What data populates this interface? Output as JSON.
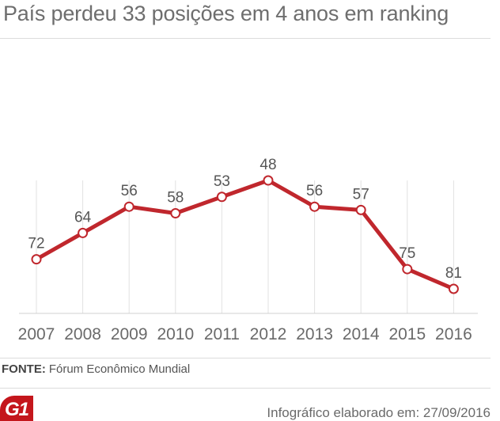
{
  "title": "País perdeu 33 posições em 4 anos em ranking",
  "source": {
    "label": "FONTE:",
    "text": "Fórum Econômico Mundial"
  },
  "logo": "G1",
  "credit": "Infográfico elaborado em: 27/09/2016",
  "colors": {
    "line": "#c0272d",
    "marker_fill": "#ffffff",
    "grid": "#e2e2e2",
    "text": "#6a6a6a"
  },
  "chart_data": {
    "type": "line",
    "title": "País perdeu 33 posições em 4 anos em ranking",
    "categories": [
      "2007",
      "2008",
      "2009",
      "2010",
      "2011",
      "2012",
      "2013",
      "2014",
      "2015",
      "2016"
    ],
    "values": [
      72,
      64,
      56,
      58,
      53,
      48,
      56,
      57,
      75,
      81
    ],
    "y_inverted": true,
    "ylim": [
      40,
      84
    ],
    "data_labels": true,
    "grid": "vertical",
    "xlabel": "",
    "ylabel": ""
  }
}
